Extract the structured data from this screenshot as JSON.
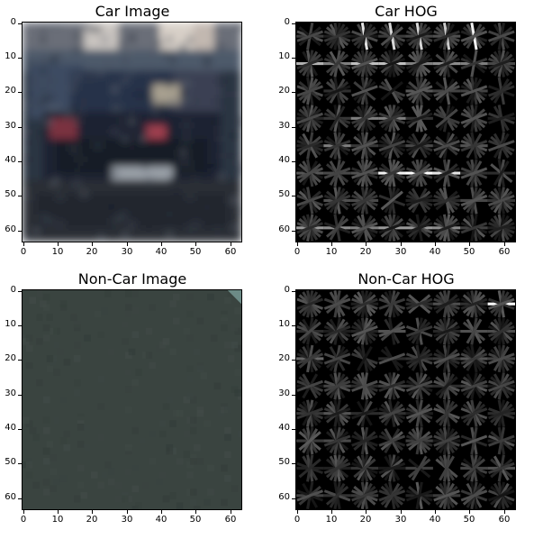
{
  "panels": [
    {
      "id": "car-image",
      "title": "Car Image",
      "kind": "photo-car"
    },
    {
      "id": "car-hog",
      "title": "Car HOG",
      "kind": "hog-car"
    },
    {
      "id": "noncar-image",
      "title": "Non-Car Image",
      "kind": "photo-road"
    },
    {
      "id": "noncar-hog",
      "title": "Non-Car HOG",
      "kind": "hog-road"
    }
  ],
  "axes": {
    "xticks": [
      "0",
      "10",
      "20",
      "30",
      "40",
      "50",
      "60"
    ],
    "yticks": [
      "0",
      "10",
      "20",
      "30",
      "40",
      "50",
      "60"
    ],
    "range": [
      0,
      64
    ]
  },
  "colors": {
    "road_base": "#3a4440",
    "hog_bg": "#000000"
  }
}
